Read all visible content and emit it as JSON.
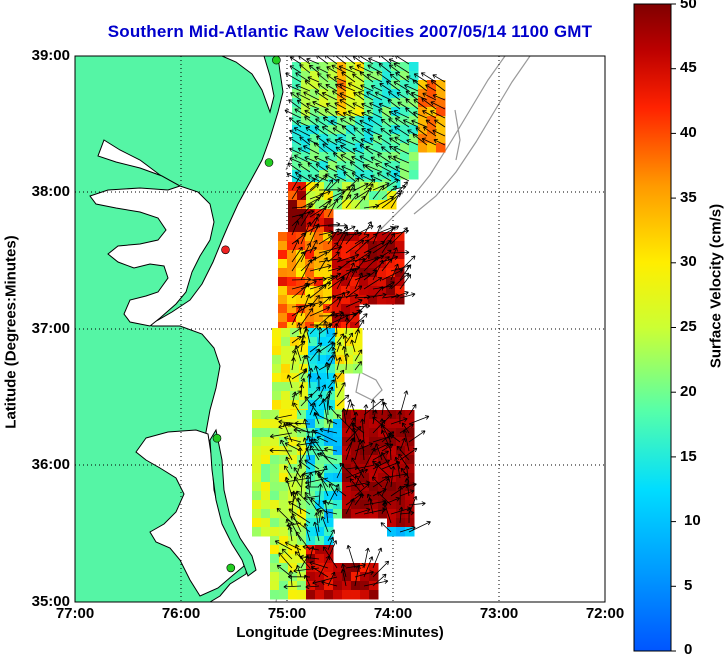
{
  "title": "Southern Mid-Atlantic Raw Velocities 2007/05/14 1100 GMT",
  "axes": {
    "x_label": "Longitude (Degrees:Minutes)",
    "y_label": "Latitude (Degrees:Minutes)",
    "x_ticks": [
      "77:00",
      "76:00",
      "75:00",
      "74:00",
      "73:00",
      "72:00"
    ],
    "y_ticks": [
      "39:00",
      "38:00",
      "37:00",
      "36:00",
      "35:00"
    ],
    "lon_range": [
      -77,
      -72
    ],
    "lat_range": [
      35,
      39
    ],
    "grid": "dotted"
  },
  "colorbar": {
    "label": "Surface Velocity (cm/s)",
    "ticks": [
      "50",
      "45",
      "40",
      "35",
      "30",
      "25",
      "20",
      "15",
      "10",
      "5",
      "0"
    ],
    "range": [
      0,
      50
    ],
    "colormap": "jet"
  },
  "colors": {
    "title": "#0000cc",
    "land": "#55f5a5",
    "coast": "#000000",
    "bathymetry": "#999999",
    "station": "#22cc22"
  },
  "stations": [
    {
      "lon": -75.1,
      "lat": 38.97,
      "color": "#22cc22"
    },
    {
      "lon": -75.17,
      "lat": 38.22,
      "color": "#22cc22"
    },
    {
      "lon": -75.58,
      "lat": 37.58,
      "color": "#ee2222"
    },
    {
      "lon": -75.66,
      "lat": 36.2,
      "color": "#22cc22"
    },
    {
      "lon": -75.53,
      "lat": 35.25,
      "color": "#22cc22"
    }
  ]
}
